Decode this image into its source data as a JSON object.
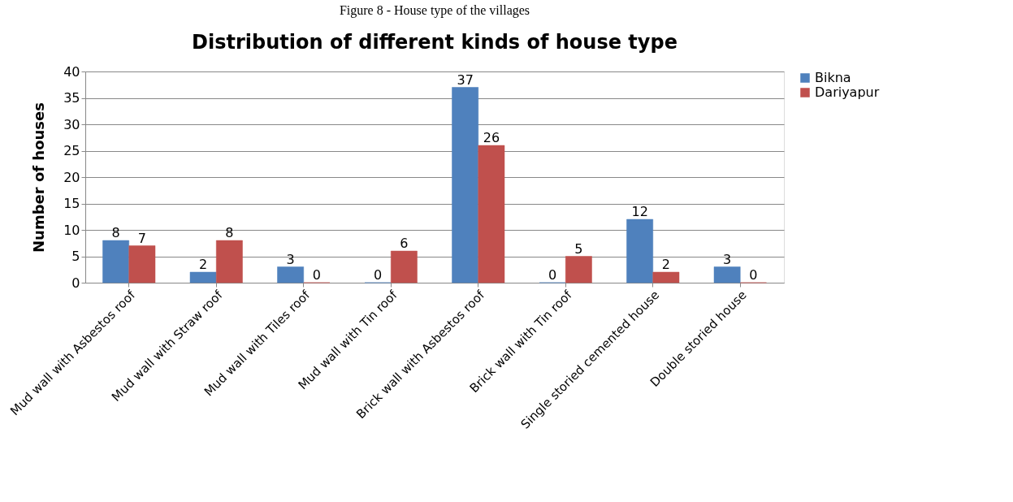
{
  "chart_data": {
    "type": "bar",
    "title": "Distribution of different kinds of house type",
    "ylabel": "Number of houses",
    "annotations": [
      "Figure 8 - House type of the villages"
    ],
    "categories": [
      "Mud wall with Asbestos roof",
      "Mud wall with Straw roof",
      "Mud wall with Tiles roof",
      "Mud wall with Tin roof",
      "Brick wall with Asbestos roof",
      "Brick wall with Tin roof",
      "Single storied cemented house",
      "Double storied house"
    ],
    "series": [
      {
        "name": "Bikna",
        "color": "#4f81bd",
        "values": [
          8,
          2,
          3,
          0,
          37,
          0,
          12,
          3
        ]
      },
      {
        "name": "Dariyapur",
        "color": "#c0504d",
        "values": [
          7,
          8,
          0,
          6,
          26,
          5,
          2,
          0
        ]
      }
    ],
    "ylim": [
      0,
      40
    ],
    "yticks": [
      0,
      5,
      10,
      15,
      20,
      25,
      30,
      35,
      40
    ],
    "grid": "y",
    "legend": "right",
    "data_labels": true
  }
}
